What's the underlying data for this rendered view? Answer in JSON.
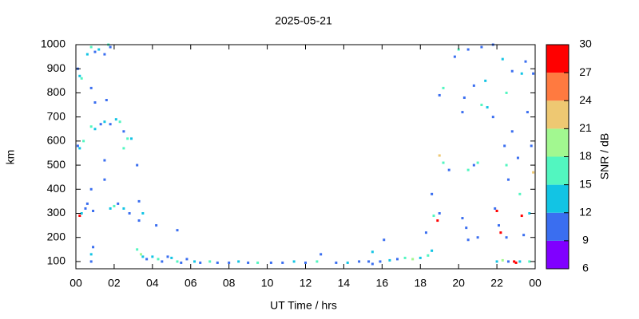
{
  "chart_data": {
    "type": "scatter",
    "title": "2025-05-21",
    "x_label": "UT Time / hrs",
    "y_label": "km",
    "xlim": [
      0,
      24
    ],
    "xticks": [
      {
        "value": 0,
        "label": "00"
      },
      {
        "value": 2,
        "label": "02"
      },
      {
        "value": 4,
        "label": "04"
      },
      {
        "value": 6,
        "label": "06"
      },
      {
        "value": 8,
        "label": "08"
      },
      10,
      12,
      14,
      16,
      18,
      20,
      22,
      {
        "value": 24,
        "label": "00"
      }
    ],
    "ylim": [
      70,
      1000
    ],
    "yticks": [
      100,
      200,
      300,
      400,
      500,
      600,
      700,
      800,
      900,
      1000
    ],
    "colorbar_label": "SNR / dB",
    "clim": [
      6,
      30
    ],
    "cticks": [
      6,
      9,
      12,
      15,
      18,
      21,
      24,
      27,
      30
    ],
    "colormap": [
      "#8000ff",
      "#3a6ef0",
      "#12c4e4",
      "#52f6c0",
      "#a2f890",
      "#eec872",
      "#ff7a40",
      "#ff0000"
    ],
    "series": [
      {
        "x": [
          0.1,
          0.2,
          0.3,
          0.1,
          0.2,
          0.4,
          0.2,
          0.3,
          0.5,
          0.6,
          0.9,
          0.6,
          0.8,
          1.0,
          1.2,
          1.5,
          1.7,
          1.8,
          0.8,
          1.0,
          1.6,
          0.8,
          1.0,
          1.3,
          1.5,
          1.8,
          2.1,
          2.3,
          2.5,
          2.7,
          2.9,
          2.5,
          3.2,
          1.5,
          1.5,
          0.8,
          0.8,
          0.8,
          0.9,
          1.8,
          2.0,
          2.2,
          2.5,
          2.8,
          3.3,
          3.3,
          3.5,
          3.2,
          3.4,
          3.5,
          3.7,
          4.0,
          4.3,
          4.5,
          4.8,
          5.0,
          5.3,
          5.5,
          5.3,
          4.2,
          5.8,
          6.2,
          6.5,
          7.0,
          7.4,
          8.0,
          8.5,
          9.0,
          9.5,
          10.2,
          10.8,
          11.4,
          12.0,
          12.6,
          12.8,
          13.6,
          14.2,
          14.8,
          15.3,
          15.5,
          15.5,
          15.9,
          16.1,
          16.4,
          16.8,
          17.2,
          17.6,
          18.0,
          18.4,
          18.6,
          18.3,
          18.6,
          18.7,
          18.9,
          19.0,
          19.0,
          19.2,
          19.0,
          19.2,
          19.5,
          19.8,
          20.0,
          20.2,
          20.5,
          20.8,
          20.3,
          20.5,
          20.8,
          20.2,
          20.4,
          20.5,
          21.0,
          21.2,
          21.4,
          21.8,
          21.5,
          21.2,
          21.8,
          21.9,
          22.0,
          22.1,
          22.2,
          22.3,
          22.5,
          22.4,
          22.5,
          22.6,
          22.5,
          22.0,
          22.3,
          22.6,
          22.8,
          22.9,
          23.0,
          23.1,
          23.2,
          23.3,
          23.5,
          23.4,
          23.6,
          23.7,
          23.8,
          23.9,
          23.9,
          23.2,
          23.7,
          22.8,
          23.3,
          21.0
        ],
        "y": [
          900,
          870,
          860,
          580,
          570,
          600,
          290,
          300,
          320,
          340,
          310,
          960,
          990,
          970,
          980,
          960,
          1000,
          990,
          820,
          760,
          770,
          660,
          650,
          670,
          680,
          670,
          690,
          680,
          640,
          610,
          610,
          570,
          500,
          520,
          440,
          400,
          130,
          100,
          160,
          320,
          330,
          340,
          320,
          300,
          350,
          270,
          300,
          150,
          130,
          120,
          110,
          120,
          110,
          100,
          120,
          115,
          100,
          95,
          230,
          250,
          110,
          100,
          95,
          100,
          95,
          95,
          100,
          95,
          95,
          95,
          95,
          100,
          95,
          100,
          130,
          95,
          95,
          100,
          100,
          140,
          90,
          100,
          190,
          105,
          110,
          115,
          110,
          115,
          125,
          145,
          220,
          380,
          290,
          270,
          300,
          540,
          510,
          790,
          820,
          480,
          950,
          980,
          720,
          980,
          830,
          780,
          480,
          500,
          280,
          240,
          190,
          510,
          990,
          850,
          1000,
          740,
          750,
          700,
          320,
          310,
          250,
          220,
          940,
          800,
          580,
          500,
          440,
          200,
          100,
          105,
          100,
          640,
          100,
          95,
          530,
          380,
          290,
          930,
          210,
          720,
          300,
          580,
          470,
          880,
          100,
          100,
          890,
          880,
          200
        ],
        "snr": [
          10,
          13,
          16,
          10,
          13,
          16,
          28,
          13,
          10,
          10,
          10,
          13,
          16,
          10,
          13,
          10,
          16,
          10,
          10,
          10,
          10,
          16,
          13,
          10,
          13,
          10,
          13,
          16,
          10,
          16,
          13,
          16,
          10,
          10,
          10,
          10,
          13,
          10,
          10,
          13,
          16,
          10,
          13,
          10,
          10,
          10,
          13,
          16,
          18,
          13,
          10,
          13,
          16,
          10,
          10,
          13,
          16,
          10,
          10,
          10,
          10,
          13,
          10,
          16,
          10,
          10,
          13,
          10,
          16,
          10,
          10,
          13,
          10,
          16,
          10,
          10,
          13,
          10,
          10,
          13,
          10,
          10,
          10,
          13,
          10,
          16,
          18,
          13,
          16,
          13,
          10,
          10,
          16,
          28,
          10,
          21,
          16,
          10,
          16,
          10,
          10,
          16,
          10,
          10,
          10,
          10,
          16,
          10,
          10,
          10,
          10,
          16,
          10,
          13,
          10,
          13,
          16,
          10,
          10,
          27,
          10,
          28,
          13,
          16,
          10,
          16,
          10,
          10,
          13,
          18,
          10,
          10,
          28,
          28,
          10,
          16,
          27,
          10,
          10,
          10,
          13,
          10,
          21,
          10,
          13,
          16,
          10,
          13,
          10
        ]
      }
    ]
  }
}
